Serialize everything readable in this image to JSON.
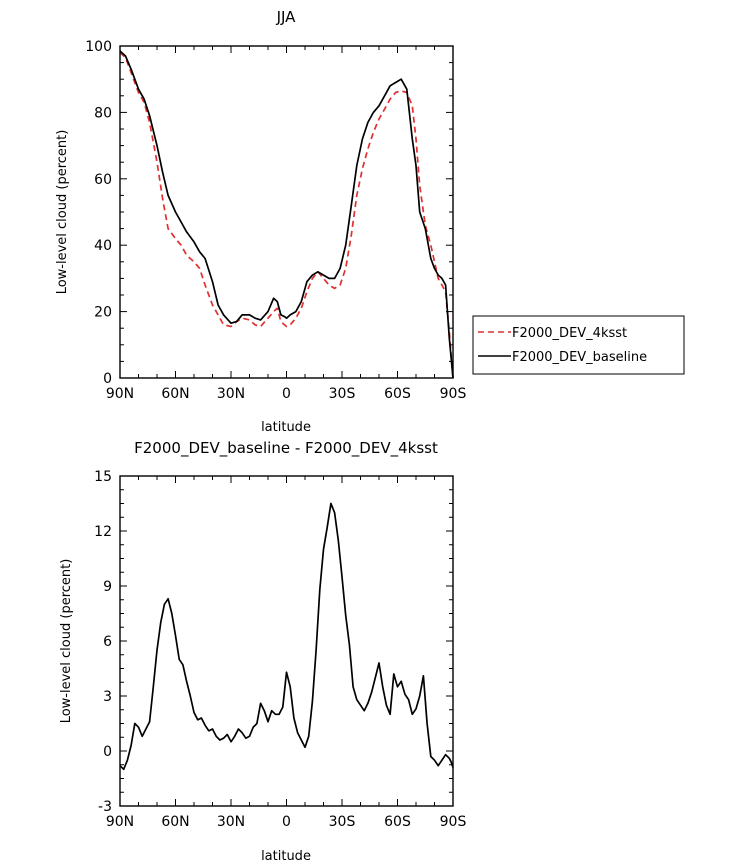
{
  "chart_data": [
    {
      "type": "line",
      "title": "JJA",
      "xlabel": "latitude",
      "ylabel": "Low-level cloud (percent)",
      "xlim": [
        90,
        -90
      ],
      "ylim": [
        0,
        100
      ],
      "xticks": [
        90,
        60,
        30,
        0,
        -30,
        -60,
        -90
      ],
      "xtick_labels": [
        "90N",
        "60N",
        "30N",
        "0",
        "30S",
        "60S",
        "90S"
      ],
      "yticks": [
        0,
        20,
        40,
        60,
        80,
        100
      ],
      "ytick_labels": [
        "0",
        "20",
        "40",
        "60",
        "80",
        "100"
      ],
      "legend_position": "outside-right",
      "series": [
        {
          "name": "F2000_DEV_4ksst",
          "color": "#e03030",
          "dash": "dashed",
          "x": [
            90,
            87,
            84,
            80,
            77,
            74,
            70,
            67,
            64,
            60,
            57,
            54,
            50,
            47,
            44,
            40,
            37,
            34,
            30,
            27,
            24,
            20,
            17,
            14,
            10,
            7,
            5,
            3,
            1,
            0,
            -2,
            -5,
            -8,
            -11,
            -14,
            -17,
            -20,
            -23,
            -26,
            -29,
            -32,
            -35,
            -38,
            -41,
            -44,
            -47,
            -50,
            -53,
            -56,
            -59,
            -62,
            -65,
            -68,
            -70,
            -72,
            -75,
            -78,
            -80,
            -82,
            -84,
            -86,
            -88,
            -90
          ],
          "y": [
            98,
            96.5,
            92,
            86,
            83,
            77,
            65,
            54,
            45,
            42,
            40,
            37,
            35,
            33,
            28,
            22,
            19,
            16,
            15.5,
            17,
            18,
            17.5,
            16,
            15.5,
            18,
            20,
            21,
            17,
            16,
            15.5,
            16,
            18,
            21,
            26,
            30,
            32,
            30,
            28,
            27,
            28,
            33,
            43,
            55,
            63,
            69,
            74,
            78,
            81,
            84,
            86,
            86.5,
            86,
            82,
            72,
            58,
            46,
            40,
            35,
            30,
            28,
            26,
            14,
            0
          ]
        },
        {
          "name": "F2000_DEV_baseline",
          "color": "#000000",
          "dash": "solid",
          "x": [
            90,
            87,
            84,
            80,
            77,
            74,
            70,
            67,
            64,
            60,
            57,
            54,
            50,
            47,
            44,
            40,
            37,
            34,
            30,
            27,
            24,
            20,
            17,
            14,
            10,
            7,
            5,
            3,
            1,
            0,
            -2,
            -5,
            -8,
            -11,
            -14,
            -17,
            -20,
            -23,
            -26,
            -29,
            -32,
            -35,
            -38,
            -41,
            -44,
            -47,
            -50,
            -53,
            -56,
            -59,
            -62,
            -65,
            -68,
            -70,
            -72,
            -75,
            -78,
            -80,
            -82,
            -84,
            -86,
            -88,
            -90
          ],
          "y": [
            98.5,
            97,
            93,
            87,
            84,
            79,
            70,
            62,
            55,
            50,
            47,
            44,
            41,
            38,
            36,
            29,
            22,
            19,
            16.5,
            17,
            19,
            19,
            18,
            17.5,
            20,
            24,
            23,
            19,
            18.5,
            18,
            19,
            20,
            23,
            29,
            31,
            32,
            31,
            30,
            30,
            33,
            40,
            52,
            64,
            72,
            77,
            80,
            82,
            85,
            88,
            89,
            90,
            87,
            72,
            64,
            50,
            45,
            36,
            33,
            31,
            30,
            28,
            12,
            0
          ]
        }
      ]
    },
    {
      "type": "line",
      "title": "F2000_DEV_baseline - F2000_DEV_4ksst",
      "xlabel": "latitude",
      "ylabel": "Low-level cloud (percent)",
      "xlim": [
        90,
        -90
      ],
      "ylim": [
        -3,
        15
      ],
      "xticks": [
        90,
        60,
        30,
        0,
        -30,
        -60,
        -90
      ],
      "xtick_labels": [
        "90N",
        "60N",
        "30N",
        "0",
        "30S",
        "60S",
        "90S"
      ],
      "yticks": [
        -3,
        0,
        3,
        6,
        9,
        12,
        15
      ],
      "ytick_labels": [
        "-3",
        "0",
        "3",
        "6",
        "9",
        "12",
        "15"
      ],
      "series": [
        {
          "color": "#000000",
          "dash": "solid",
          "x": [
            90,
            88,
            86,
            84,
            82,
            80,
            78,
            76,
            74,
            72,
            70,
            68,
            66,
            64,
            62,
            60,
            58,
            56,
            54,
            52,
            50,
            48,
            46,
            44,
            42,
            40,
            38,
            36,
            34,
            32,
            30,
            28,
            26,
            24,
            22,
            20,
            18,
            16,
            14,
            12,
            10,
            8,
            6,
            4,
            2,
            0,
            -2,
            -4,
            -6,
            -8,
            -10,
            -12,
            -14,
            -16,
            -18,
            -20,
            -22,
            -24,
            -26,
            -28,
            -30,
            -32,
            -34,
            -36,
            -38,
            -40,
            -42,
            -44,
            -46,
            -48,
            -50,
            -52,
            -54,
            -56,
            -58,
            -60,
            -62,
            -64,
            -66,
            -68,
            -70,
            -72,
            -74,
            -76,
            -78,
            -80,
            -82,
            -84,
            -86,
            -88,
            -89,
            -90
          ],
          "y": [
            -0.8,
            -1,
            -0.5,
            0.3,
            1.5,
            1.3,
            0.8,
            1.2,
            1.6,
            3.5,
            5.5,
            7,
            8,
            8.3,
            7.5,
            6.3,
            5,
            4.7,
            3.8,
            3,
            2.1,
            1.7,
            1.8,
            1.4,
            1.1,
            1.2,
            0.8,
            0.6,
            0.7,
            0.9,
            0.5,
            0.8,
            1.2,
            1.0,
            0.7,
            0.8,
            1.3,
            1.5,
            2.6,
            2.2,
            1.6,
            2.2,
            2.0,
            2.0,
            2.4,
            4.3,
            3.5,
            1.8,
            1.0,
            0.6,
            0.2,
            0.8,
            2.7,
            5.5,
            8.8,
            11,
            12.2,
            13.5,
            13.0,
            11.5,
            9.5,
            7.4,
            5.8,
            3.5,
            2.8,
            2.5,
            2.2,
            2.6,
            3.2,
            4.0,
            4.8,
            3.5,
            2.5,
            2.0,
            4.2,
            3.5,
            3.8,
            3.1,
            2.8,
            2.0,
            2.3,
            3.0,
            4.1,
            1.5,
            -0.3,
            -0.5,
            -0.8,
            -0.5,
            -0.2,
            -0.4,
            -0.6,
            -0.9
          ]
        }
      ]
    }
  ]
}
